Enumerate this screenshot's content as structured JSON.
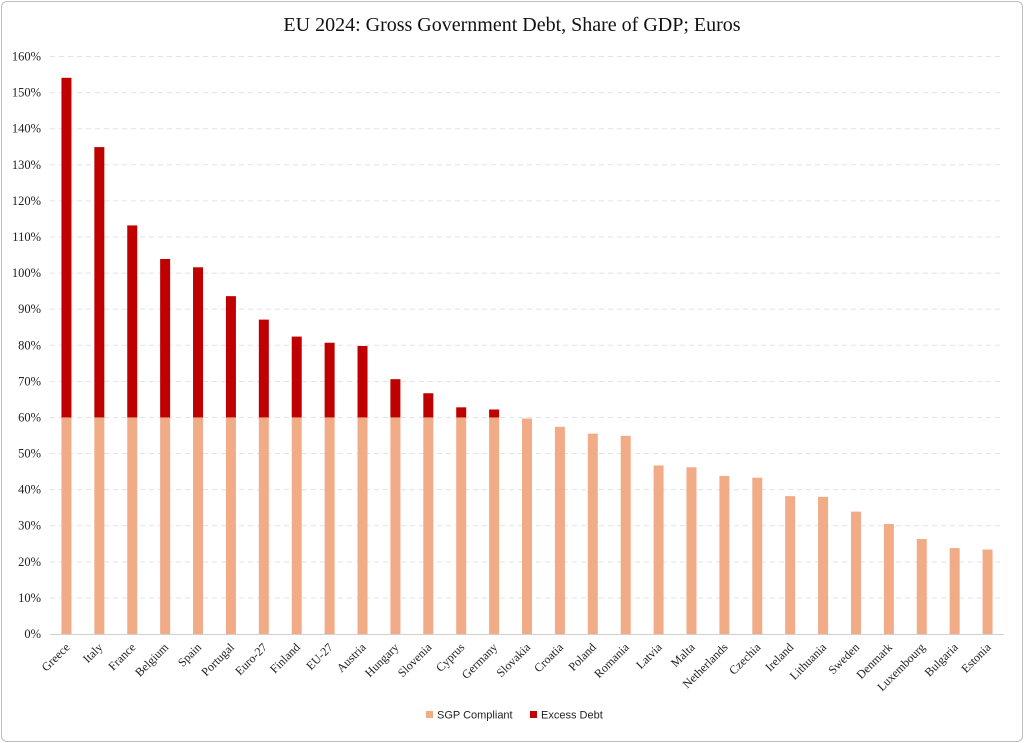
{
  "chart_data": {
    "type": "bar",
    "stacked": true,
    "title": "EU 2024: Gross Government Debt, Share of GDP; Euros",
    "xlabel": "",
    "ylabel": "",
    "ylim": [
      0,
      160
    ],
    "y_ticks": [
      0,
      10,
      20,
      30,
      40,
      50,
      60,
      70,
      80,
      90,
      100,
      110,
      120,
      130,
      140,
      150,
      160
    ],
    "y_tick_labels": [
      "0%",
      "10%",
      "20%",
      "30%",
      "40%",
      "50%",
      "60%",
      "70%",
      "80%",
      "90%",
      "100%",
      "110%",
      "120%",
      "130%",
      "140%",
      "150%",
      "160%"
    ],
    "grid": true,
    "legend_position": "bottom",
    "categories": [
      "Greece",
      "Italy",
      "France",
      "Belgium",
      "Spain",
      "Portugal",
      "Euro-27",
      "Finland",
      "EU-27",
      "Austria",
      "Hungary",
      "Slovenia",
      "Cyprus",
      "Germany",
      "Slovakia",
      "Croatia",
      "Poland",
      "Romania",
      "Latvia",
      "Malta",
      "Netherlands",
      "Czechia",
      "Ireland",
      "Lithuania",
      "Sweden",
      "Denmark",
      "Luxembourg",
      "Bulgaria",
      "Estonia"
    ],
    "series": [
      {
        "name": "SGP Compliant",
        "color": "#f2ab87",
        "values": [
          60,
          60,
          60,
          60,
          60,
          60,
          60,
          60,
          60,
          60,
          60,
          60,
          60,
          60,
          59.7,
          57.4,
          55.5,
          54.9,
          46.7,
          46.2,
          43.8,
          43.3,
          38.2,
          38.0,
          33.9,
          30.5,
          26.3,
          23.8,
          23.4
        ]
      },
      {
        "name": "Excess Debt",
        "color": "#c00000",
        "values": [
          94.1,
          74.9,
          53.2,
          43.9,
          41.6,
          33.6,
          27.1,
          22.4,
          20.7,
          19.8,
          10.6,
          6.7,
          2.8,
          2.2,
          0,
          0,
          0,
          0,
          0,
          0,
          0,
          0,
          0,
          0,
          0,
          0,
          0,
          0,
          0
        ]
      }
    ]
  }
}
